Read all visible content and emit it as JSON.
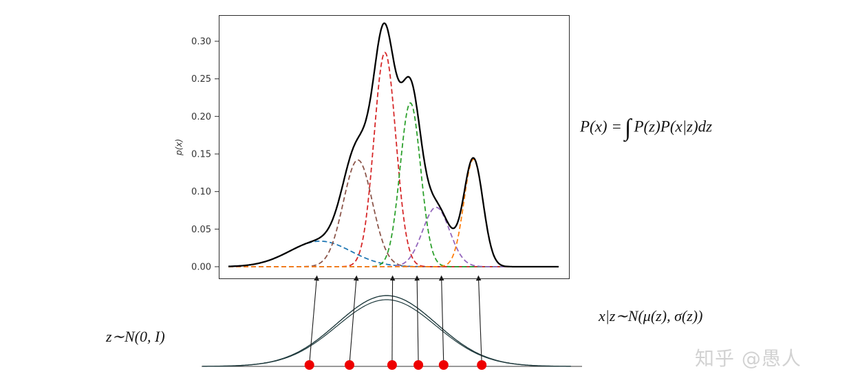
{
  "figure": {
    "formulas": {
      "prior": "z∼N(0, I)",
      "marginal_prefix": "P(x) =",
      "integral": "∫",
      "marginal_suffix": "P(z)P(x|z)dz",
      "conditional": "x|z∼N(μ(z), σ(z))"
    },
    "watermark": "知乎 @愚人"
  },
  "chart_data": {
    "type": "line",
    "title": "",
    "xlabel": "",
    "ylabel": "p(x)",
    "yticks": [
      "0.30",
      "0.25",
      "0.20",
      "0.15",
      "0.10",
      "0.05",
      "0.00"
    ],
    "ylim": [
      -0.016,
      0.335
    ],
    "xlim": [
      0,
      1
    ],
    "grid": false,
    "legend": "none",
    "description": "Black solid curve p(x) is the sum of six dashed Gaussian mixture components; below, samples z from a standard normal prior map (arrows) to the component means.",
    "sum_color": "#000000",
    "mixture_components": [
      {
        "name": "blue",
        "color": "#1f77b4",
        "mean": 0.278,
        "sigma": 0.093,
        "amplitude": 0.034
      },
      {
        "name": "brown",
        "color": "#8c564b",
        "mean": 0.392,
        "sigma": 0.044,
        "amplitude": 0.142
      },
      {
        "name": "red",
        "color": "#d62728",
        "mean": 0.474,
        "sigma": 0.033,
        "amplitude": 0.285
      },
      {
        "name": "green",
        "color": "#2ca02c",
        "mean": 0.551,
        "sigma": 0.031,
        "amplitude": 0.218
      },
      {
        "name": "purple",
        "color": "#9467bd",
        "mean": 0.629,
        "sigma": 0.041,
        "amplitude": 0.079
      },
      {
        "name": "orange",
        "color": "#ff7f0e",
        "mean": 0.742,
        "sigma": 0.029,
        "amplitude": 0.143
      }
    ],
    "prior_color": "#1f3a3d",
    "prior": {
      "name": "z prior N(0,1)",
      "mean": 0,
      "sigma": 1
    },
    "sample_color": "#ee0000",
    "arrow_color": "#1a1a1a",
    "samples_z": [
      -1.56,
      -0.75,
      0.11,
      0.64,
      1.15,
      1.92
    ],
    "arrow_targets_x": [
      0.268,
      0.388,
      0.497,
      0.571,
      0.645,
      0.757
    ]
  }
}
